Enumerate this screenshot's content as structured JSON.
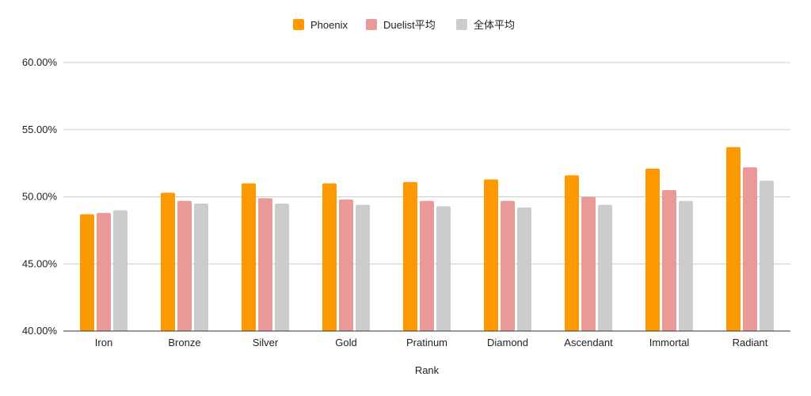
{
  "chart_data": {
    "type": "bar",
    "title": "",
    "xlabel": "Rank",
    "ylabel": "",
    "ylim": [
      0.4,
      0.6
    ],
    "yticks": [
      "40.00%",
      "45.00%",
      "50.00%",
      "55.00%",
      "60.00%"
    ],
    "grid": true,
    "legend_position": "top-center",
    "categories": [
      "Iron",
      "Bronze",
      "Silver",
      "Gold",
      "Pratinum",
      "Diamond",
      "Ascendant",
      "Immortal",
      "Radiant"
    ],
    "series": [
      {
        "name": "Phoenix",
        "color": "#ff9900",
        "values": [
          0.487,
          0.503,
          0.51,
          0.51,
          0.511,
          0.513,
          0.516,
          0.521,
          0.537
        ]
      },
      {
        "name": "Duelist平均",
        "color": "#ea9999",
        "values": [
          0.488,
          0.497,
          0.499,
          0.498,
          0.497,
          0.497,
          0.5,
          0.505,
          0.522
        ]
      },
      {
        "name": "全体平均",
        "color": "#cccccc",
        "values": [
          0.49,
          0.495,
          0.495,
          0.494,
          0.493,
          0.492,
          0.494,
          0.497,
          0.512
        ]
      }
    ]
  }
}
